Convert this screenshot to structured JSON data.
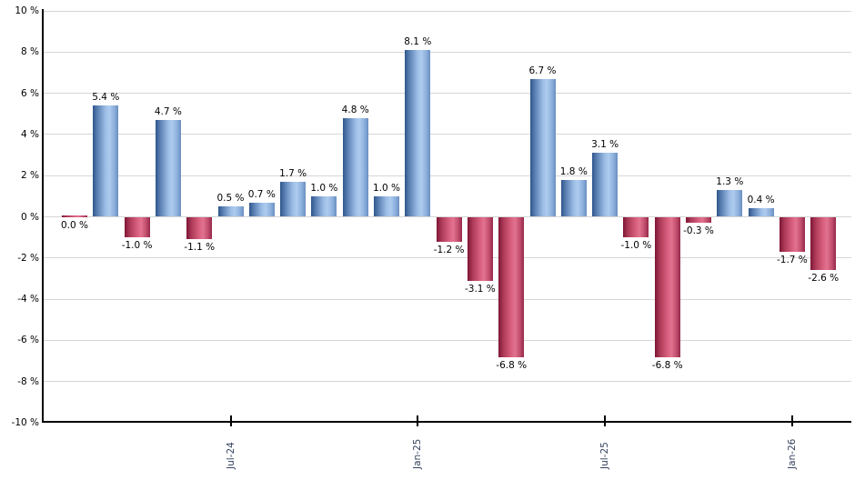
{
  "chart_data": {
    "type": "bar",
    "title": "",
    "xlabel": "",
    "ylabel": "",
    "grid": true,
    "legend": false,
    "unit": "%",
    "y_axis": {
      "min": -10,
      "max": 10,
      "tick_step": 2,
      "ticks": [
        {
          "value": 10,
          "label": "10 %"
        },
        {
          "value": 8,
          "label": "8 %"
        },
        {
          "value": 6,
          "label": "6 %"
        },
        {
          "value": 4,
          "label": "4 %"
        },
        {
          "value": 2,
          "label": "2 %"
        },
        {
          "value": 0,
          "label": "0 %"
        },
        {
          "value": -2,
          "label": "-2 %"
        },
        {
          "value": -4,
          "label": "-4 %"
        },
        {
          "value": -6,
          "label": "-6 %"
        },
        {
          "value": -8,
          "label": "-8 %"
        },
        {
          "value": -10,
          "label": "-10 %"
        }
      ]
    },
    "x_axis": {
      "ticks": [
        {
          "label": "Jul-24",
          "bar_index": 5
        },
        {
          "label": "Jan-25",
          "bar_index": 11
        },
        {
          "label": "Jul-25",
          "bar_index": 17
        },
        {
          "label": "Jan-26",
          "bar_index": 23
        }
      ]
    },
    "bars": [
      {
        "value": 0.0,
        "label": "0.0 %",
        "color": "negative"
      },
      {
        "value": 5.4,
        "label": "5.4 %",
        "color": "positive"
      },
      {
        "value": -1.0,
        "label": "-1.0 %",
        "color": "negative"
      },
      {
        "value": 4.7,
        "label": "4.7 %",
        "color": "positive"
      },
      {
        "value": -1.1,
        "label": "-1.1 %",
        "color": "negative"
      },
      {
        "value": 0.5,
        "label": "0.5 %",
        "color": "positive"
      },
      {
        "value": 0.7,
        "label": "0.7 %",
        "color": "positive"
      },
      {
        "value": 1.7,
        "label": "1.7 %",
        "color": "positive"
      },
      {
        "value": 1.0,
        "label": "1.0 %",
        "color": "positive"
      },
      {
        "value": 4.8,
        "label": "4.8 %",
        "color": "positive"
      },
      {
        "value": 1.0,
        "label": "1.0 %",
        "color": "positive"
      },
      {
        "value": 8.1,
        "label": "8.1 %",
        "color": "positive"
      },
      {
        "value": -1.2,
        "label": "-1.2 %",
        "color": "negative"
      },
      {
        "value": -3.1,
        "label": "-3.1 %",
        "color": "negative"
      },
      {
        "value": -6.8,
        "label": "-6.8 %",
        "color": "negative"
      },
      {
        "value": 6.7,
        "label": "6.7 %",
        "color": "positive"
      },
      {
        "value": 1.8,
        "label": "1.8 %",
        "color": "positive"
      },
      {
        "value": 3.1,
        "label": "3.1 %",
        "color": "positive"
      },
      {
        "value": -1.0,
        "label": "-1.0 %",
        "color": "negative"
      },
      {
        "value": -6.8,
        "label": "-6.8 %",
        "color": "negative"
      },
      {
        "value": -0.3,
        "label": "-0.3 %",
        "color": "negative"
      },
      {
        "value": 1.3,
        "label": "1.3 %",
        "color": "positive"
      },
      {
        "value": 0.4,
        "label": "0.4 %",
        "color": "positive"
      },
      {
        "value": -1.7,
        "label": "-1.7 %",
        "color": "negative"
      },
      {
        "value": -2.6,
        "label": "-2.6 %",
        "color": "negative"
      }
    ],
    "colors": {
      "positive": "#89aedc",
      "negative": "#d05c7c",
      "grid": "#d6d6d6",
      "axis": "#000000",
      "x_tick_label": "#36435f",
      "value_label": "#000000",
      "background": "#ffffff"
    }
  }
}
